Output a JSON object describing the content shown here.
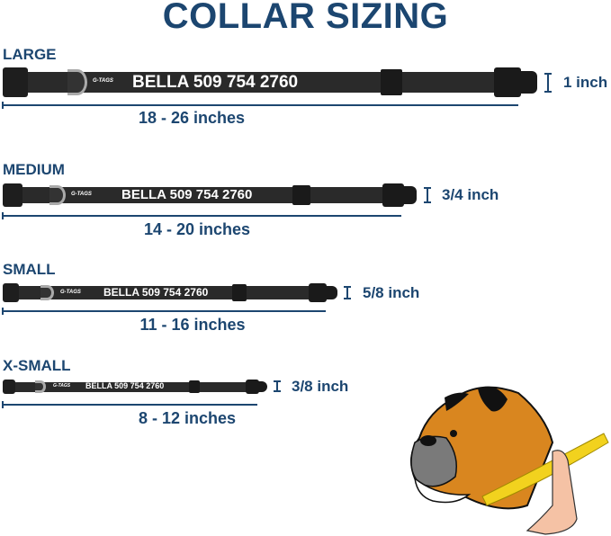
{
  "title": "COLLAR SIZING",
  "brand_logo": "G-TAGS",
  "sizes": [
    {
      "name": "LARGE",
      "engraving": "BELLA 509 754 2760",
      "range": "18 - 26 inches",
      "width": "1 inch"
    },
    {
      "name": "MEDIUM",
      "engraving": "BELLA 509 754 2760",
      "range": "14 - 20 inches",
      "width": "3/4 inch"
    },
    {
      "name": "SMALL",
      "engraving": "BELLA 509 754 2760",
      "range": "11 - 16 inches",
      "width": "5/8 inch"
    },
    {
      "name": "X-SMALL",
      "engraving": "BELLA 509 754 2760",
      "range": "8 - 12 inches",
      "width": "3/8 inch"
    }
  ],
  "colors": {
    "accent": "#1c4670",
    "collar": "#2a2a2a",
    "dog": "#d9861f",
    "tape": "#f2d21e"
  }
}
